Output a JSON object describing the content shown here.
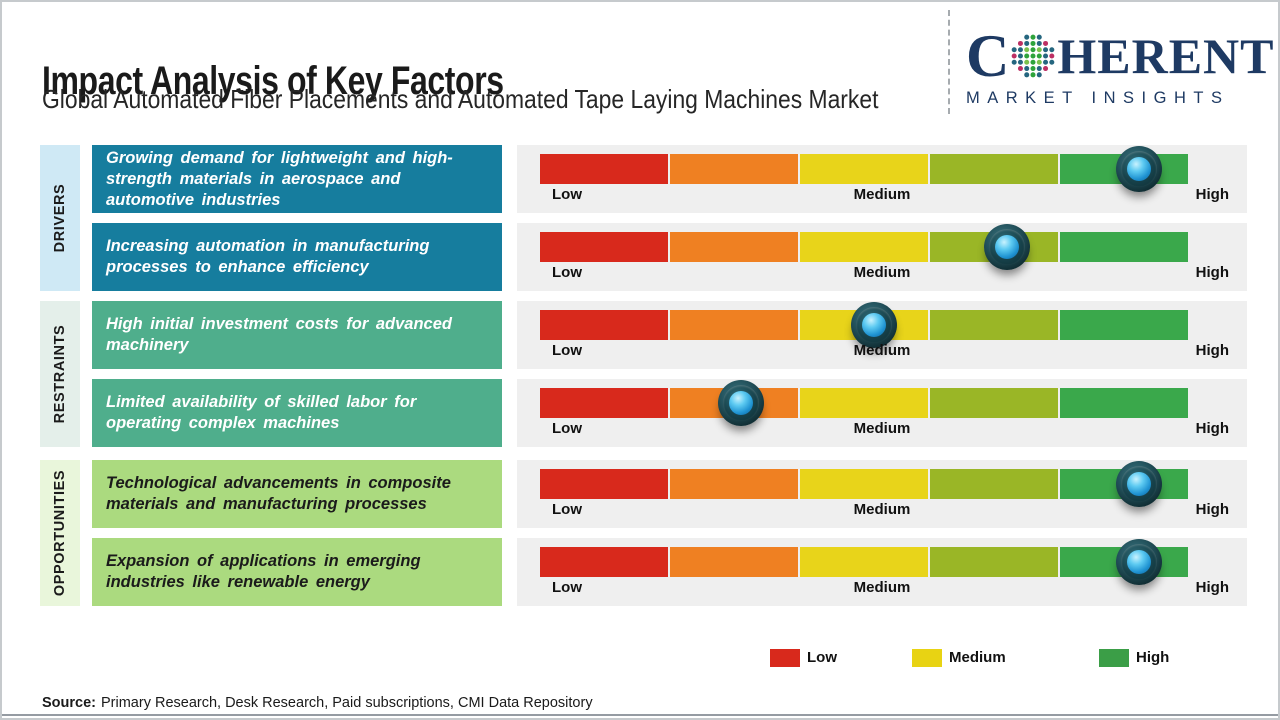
{
  "page": {
    "title": "Impact Analysis of Key Factors",
    "subtitle": "Global Automated Fiber Placements and Automated Tape Laying Machines Market",
    "source_label": "Source:",
    "source_text": "Primary Research, Desk Research, Paid subscriptions, CMI Data Repository"
  },
  "logo": {
    "brand_prefix": "C",
    "brand_suffix": "HERENT",
    "tagline": "MARKET INSIGHTS",
    "color": "#1e3a63",
    "globe_icon": "dotted-globe"
  },
  "scale": {
    "low_label": "Low",
    "medium_label": "Medium",
    "high_label": "High",
    "segment_colors": [
      "#d8291c",
      "#ef8022",
      "#e8d41a",
      "#9ab626",
      "#3aa84b"
    ],
    "track_bg": "#efefef",
    "knob_outer_color": "#12333a",
    "knob_core_color": "#2aa3e3"
  },
  "legend": {
    "items": [
      {
        "label": "Low",
        "color": "#d8291c"
      },
      {
        "label": "Medium",
        "color": "#e8d313"
      },
      {
        "label": "High",
        "color": "#3b9e47"
      }
    ]
  },
  "sections": [
    {
      "name": "DRIVERS",
      "label_bg": "#cfe9f5",
      "box_bg": "#167d9e",
      "box_text": "#ffffff",
      "factors": [
        {
          "text": "Growing demand for lightweight and high-strength materials in aerospace and automotive industries",
          "impact_pct": 92.5,
          "impact": "High"
        },
        {
          "text": "Increasing automation in manufacturing processes to enhance efficiency",
          "impact_pct": 72,
          "impact": "Medium-High"
        }
      ]
    },
    {
      "name": "RESTRAINTS",
      "label_bg": "#e4efea",
      "box_bg": "#4fae8c",
      "box_text": "#ffffff",
      "factors": [
        {
          "text": "High initial investment costs for advanced machinery",
          "impact_pct": 51.5,
          "impact": "Medium"
        },
        {
          "text": "Limited availability of skilled labor for operating complex machines",
          "impact_pct": 31,
          "impact": "Low-Medium"
        }
      ]
    },
    {
      "name": "OPPORTUNITIES",
      "label_bg": "#e9f6db",
      "box_bg": "#abda7f",
      "box_text": "#1b1b1b",
      "factors": [
        {
          "text": "Technological advancements in composite materials and manufacturing processes",
          "impact_pct": 92.5,
          "impact": "High"
        },
        {
          "text": "Expansion of applications in emerging industries like renewable energy",
          "impact_pct": 92.5,
          "impact": "High"
        }
      ]
    }
  ],
  "chart_data": {
    "type": "bar",
    "subtype": "impact-slider-scale",
    "title": "Impact Analysis of Key Factors",
    "subtitle": "Global Automated Fiber Placements and Automated Tape Laying Machines Market",
    "groups": [
      "Drivers",
      "Drivers",
      "Restraints",
      "Restraints",
      "Opportunities",
      "Opportunities"
    ],
    "categories": [
      "Growing demand for lightweight and high-strength materials in aerospace and automotive industries",
      "Increasing automation in manufacturing processes to enhance efficiency",
      "High initial investment costs for advanced machinery",
      "Limited availability of skilled labor for operating complex machines",
      "Technological advancements in composite materials and manufacturing processes",
      "Expansion of applications in emerging industries like renewable energy"
    ],
    "series": [
      {
        "name": "Impact level (0 = Low, 100 = High)",
        "values": [
          92.5,
          72,
          51.5,
          31,
          92.5,
          92.5
        ]
      }
    ],
    "impact_labels": [
      "High",
      "Medium-High",
      "Medium",
      "Low-Medium",
      "High",
      "High"
    ],
    "scale_labels": [
      "Low",
      "Medium",
      "High"
    ],
    "scale_segments": 5,
    "xlim": [
      0,
      100
    ],
    "legend": [
      "Low",
      "Medium",
      "High"
    ],
    "legend_position": "bottom"
  }
}
